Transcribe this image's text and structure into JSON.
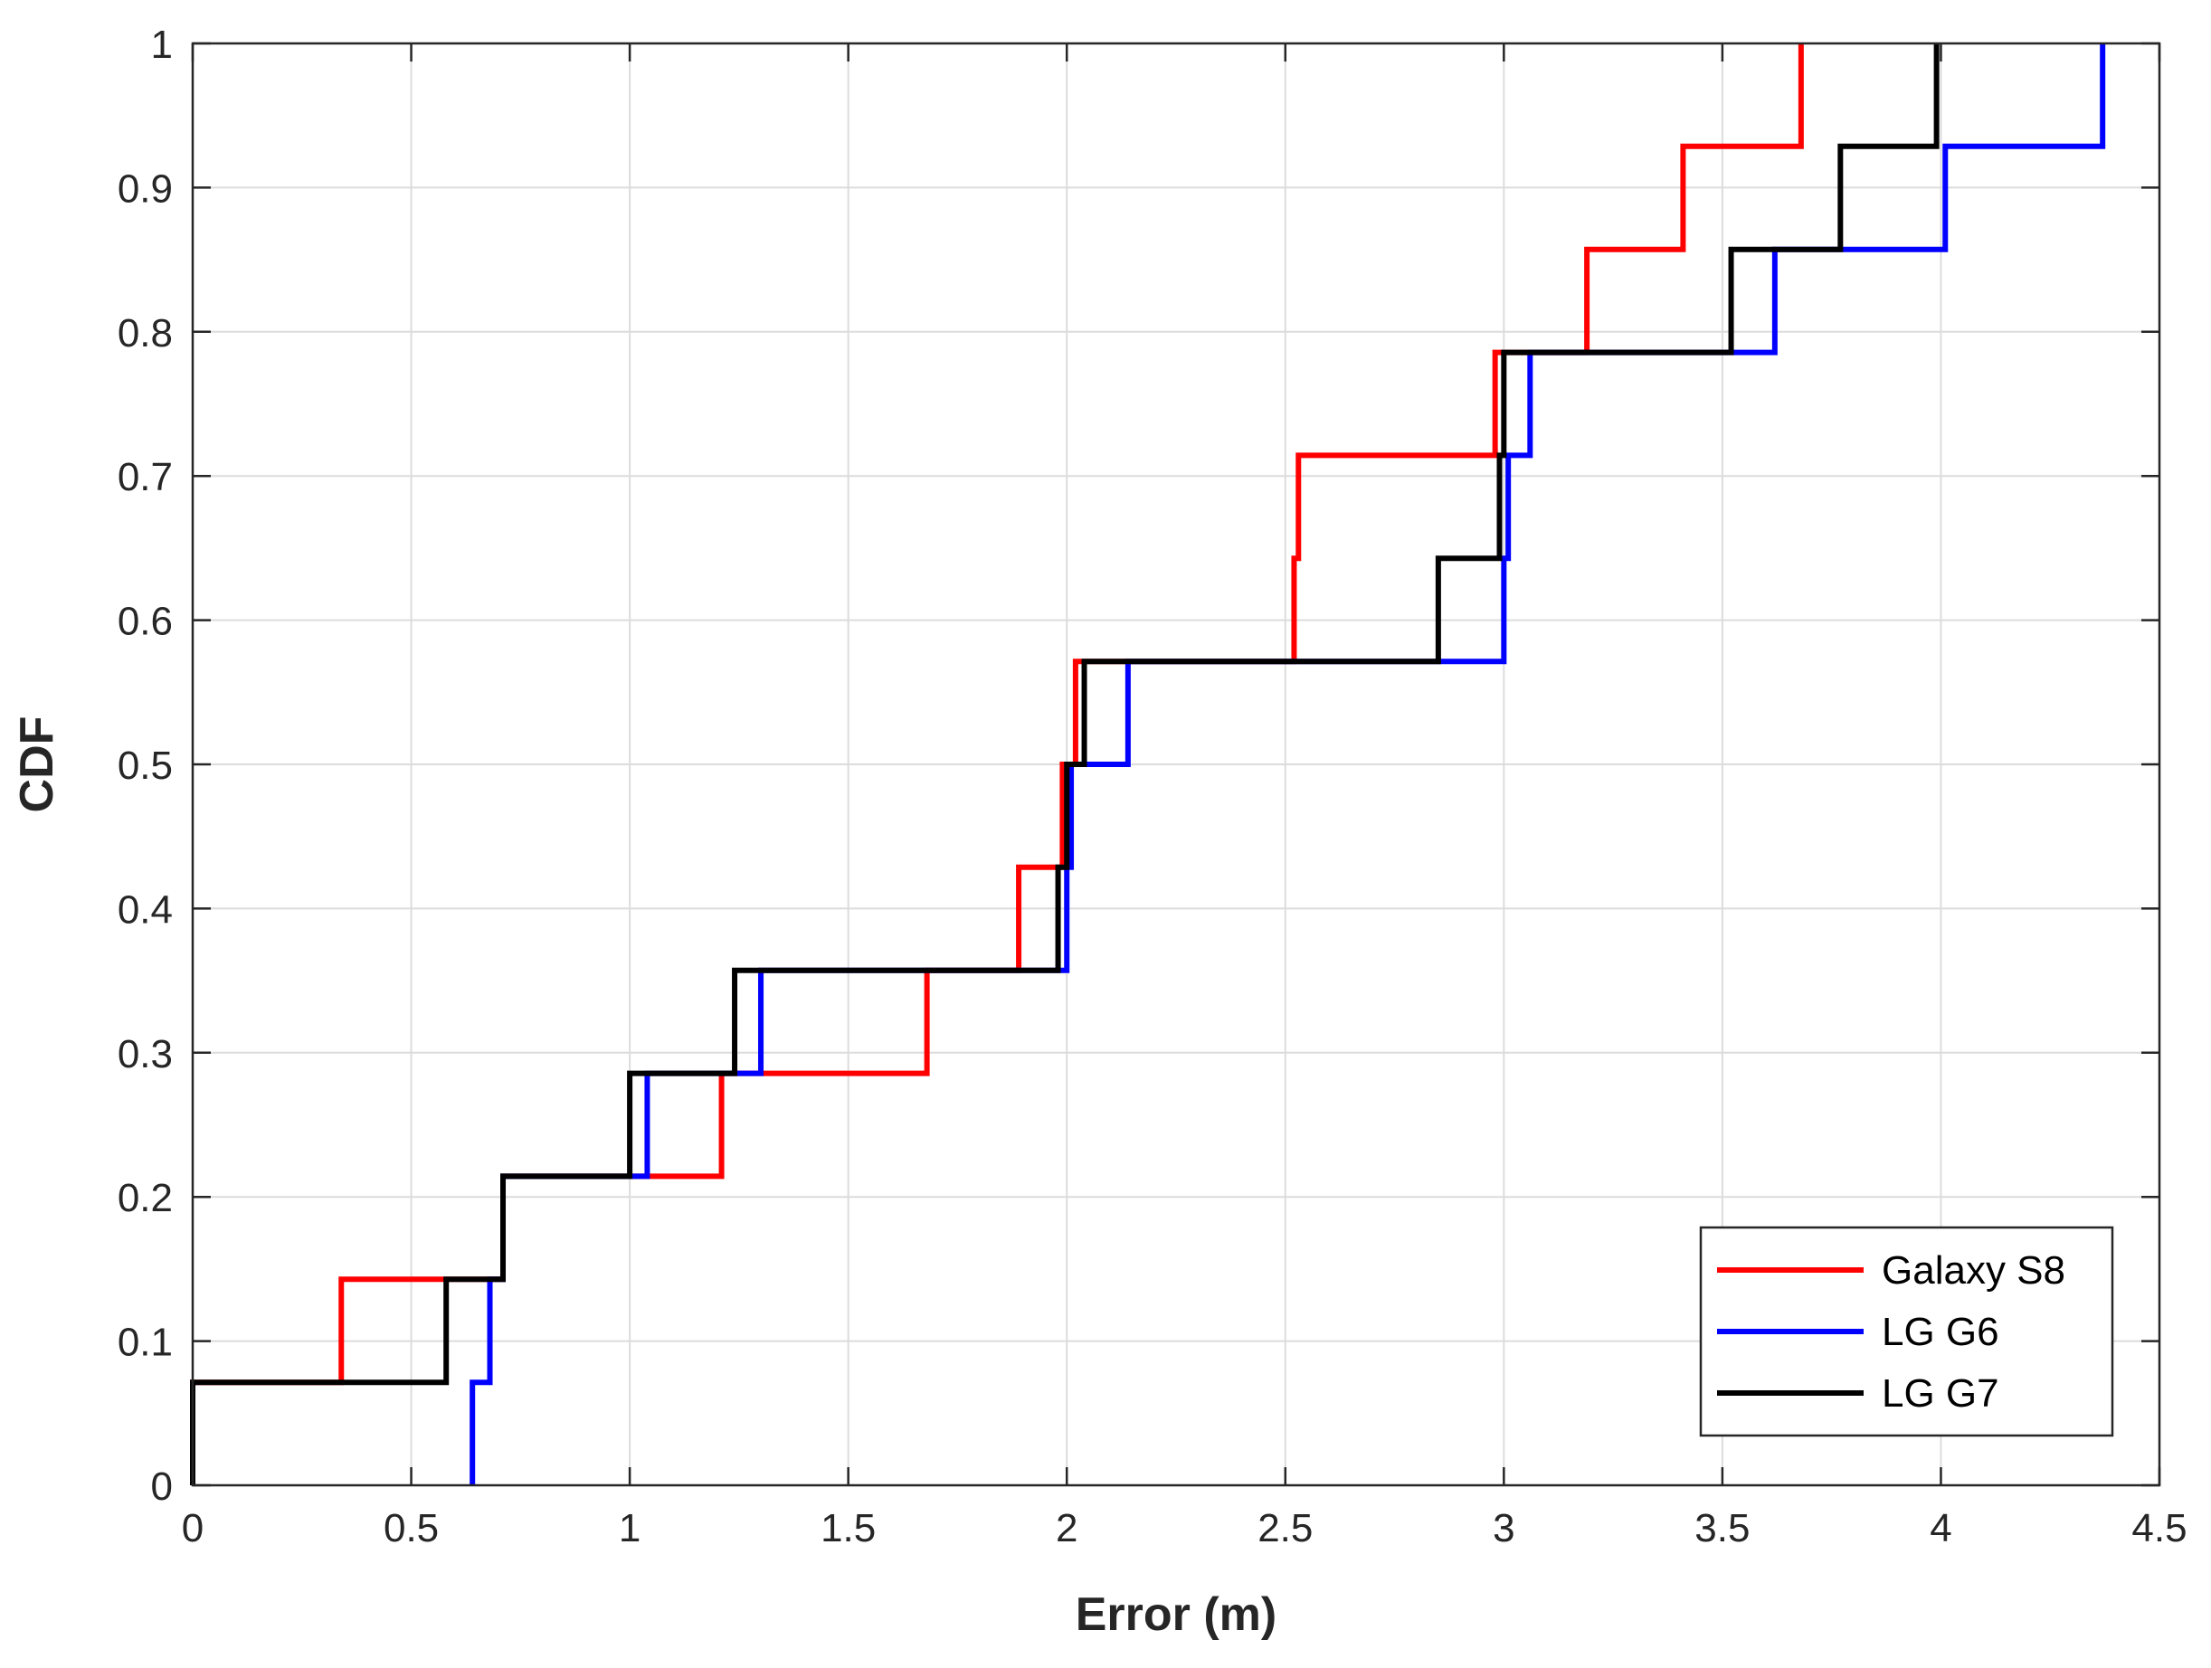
{
  "chart_data": {
    "type": "line",
    "step": true,
    "xlabel": "Error (m)",
    "ylabel": "CDF",
    "xlim": [
      0,
      4.5
    ],
    "ylim": [
      0,
      1
    ],
    "xticks": [
      0,
      0.5,
      1,
      1.5,
      2,
      2.5,
      3,
      3.5,
      4,
      4.5
    ],
    "xtick_labels": [
      "0",
      "0.5",
      "1",
      "1.5",
      "2",
      "2.5",
      "3",
      "3.5",
      "4",
      "4.5"
    ],
    "yticks": [
      0,
      0.1,
      0.2,
      0.3,
      0.4,
      0.5,
      0.6,
      0.7,
      0.8,
      0.9,
      1
    ],
    "ytick_labels": [
      "0",
      "0.1",
      "0.2",
      "0.3",
      "0.4",
      "0.5",
      "0.6",
      "0.7",
      "0.8",
      "0.9",
      "1"
    ],
    "grid": true,
    "legend": "bottom-right",
    "series": [
      {
        "name": "Galaxy S8",
        "color": "#ff0000",
        "x": [
          0,
          0.34,
          0.58,
          0.71,
          1.0,
          1.21,
          1.68,
          1.89,
          1.99,
          2.02,
          2.52,
          2.53,
          2.98,
          3.19,
          3.41,
          3.68
        ],
        "y": [
          0.0714,
          0.1429,
          0.1429,
          0.2143,
          0.2143,
          0.2857,
          0.3571,
          0.4286,
          0.5,
          0.5714,
          0.6429,
          0.7143,
          0.7857,
          0.8571,
          0.9286,
          1.0
        ]
      },
      {
        "name": "LG G6",
        "color": "#0000ff",
        "x": [
          0.64,
          0.68,
          0.71,
          1.04,
          1.3,
          2.0,
          2.01,
          2.14,
          3.0,
          3.01,
          3.06,
          3.62,
          3.78,
          4.01,
          4.37
        ],
        "y": [
          0.0714,
          0.1429,
          0.2143,
          0.2857,
          0.3571,
          0.4286,
          0.5,
          0.5714,
          0.6429,
          0.7143,
          0.7857,
          0.8571,
          0.8571,
          0.9286,
          1.0
        ]
      },
      {
        "name": "LG G7",
        "color": "#000000",
        "x": [
          0,
          0.58,
          0.71,
          1.0,
          1.24,
          1.98,
          2.0,
          2.04,
          2.85,
          2.99,
          3.0,
          3.52,
          3.77,
          3.99
        ],
        "y": [
          0.0714,
          0.1429,
          0.2143,
          0.2857,
          0.3571,
          0.4286,
          0.5,
          0.5714,
          0.6429,
          0.7143,
          0.7857,
          0.8571,
          0.9286,
          1.0
        ]
      }
    ]
  }
}
